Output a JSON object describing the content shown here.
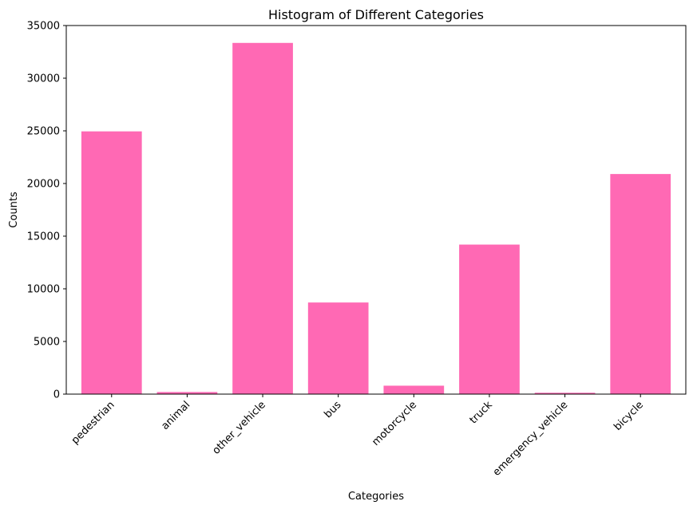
{
  "chart_data": {
    "type": "bar",
    "title": "Histogram of Different Categories",
    "xlabel": "Categories",
    "ylabel": "Counts",
    "categories": [
      "pedestrian",
      "animal",
      "other_vehicle",
      "bus",
      "motorcycle",
      "truck",
      "emergency_vehicle",
      "bicycle"
    ],
    "values": [
      24950,
      200,
      33350,
      8700,
      800,
      14200,
      130,
      20900
    ],
    "ylim": [
      0,
      35000
    ],
    "yticks": [
      0,
      5000,
      10000,
      15000,
      20000,
      25000,
      30000,
      35000
    ],
    "grid": false,
    "bar_color": "#ff69b4",
    "legend": "none"
  }
}
